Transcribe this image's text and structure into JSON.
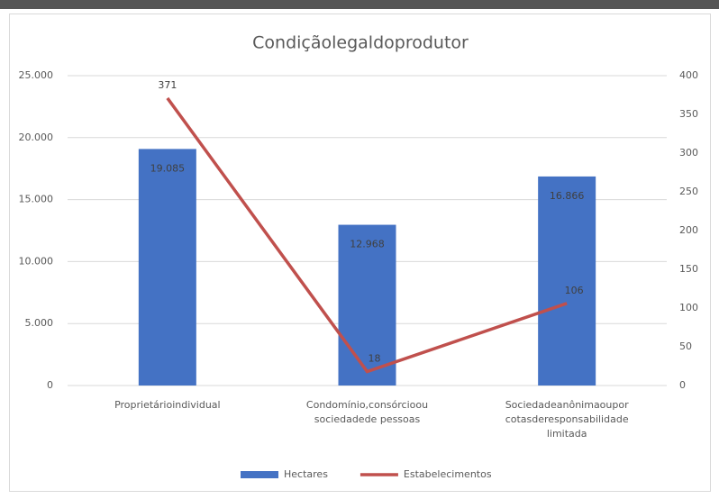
{
  "chart_data": {
    "type": "bar",
    "title": "Condiçãolegaldoprodutor",
    "categories": [
      "Proprietárioindividual",
      "Condomínio,consórcioou\nsociedadede pessoas",
      "Sociedadeanônimaoupor\ncotasderesponsabilidade\nlimitada"
    ],
    "series": [
      {
        "name": "Hectares",
        "type": "bar",
        "color": "#4472c4",
        "values": [
          19085,
          12968,
          16866
        ],
        "value_labels": [
          "19.085",
          "12.968",
          "16.866"
        ]
      },
      {
        "name": "Estabelecimentos",
        "type": "line",
        "axis": "y2",
        "color": "#c0504d",
        "values": [
          371,
          18,
          106
        ]
      }
    ],
    "ylim": [
      0,
      25000
    ],
    "yticks": [
      0,
      {
        "value": 5000,
        "label": "5.000"
      },
      {
        "value": 10000,
        "label": "10.000"
      },
      {
        "value": 15000,
        "label": "15.000"
      },
      {
        "value": 20000,
        "label": "20.000"
      },
      {
        "value": 25000,
        "label": "25.000"
      }
    ],
    "y2lim": [
      0,
      400
    ],
    "y2ticks": [
      0,
      50,
      100,
      150,
      200,
      250,
      300,
      350,
      400
    ],
    "grid": true,
    "legend": "bottom"
  }
}
